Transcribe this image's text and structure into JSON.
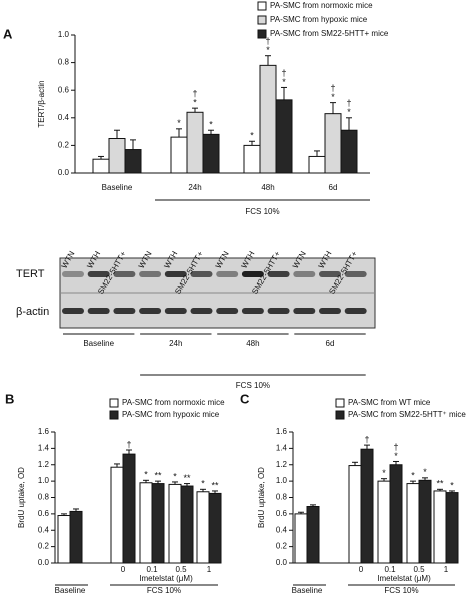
{
  "chart_data": [
    {
      "type": "bar",
      "panel": "A",
      "ylabel": "TERT/β-actin",
      "categories": [
        "Baseline",
        "24h",
        "48h",
        "6d"
      ],
      "group_label": "FCS 10%",
      "ylim": [
        0,
        1.0
      ],
      "yticks": [
        {
          "value": 0,
          "label": "0.0"
        },
        {
          "value": 0.2,
          "label": "0.2"
        },
        {
          "value": 0.4,
          "label": "0.4"
        },
        {
          "value": 0.6,
          "label": "0.6"
        },
        {
          "value": 0.8,
          "label": "0.8"
        },
        {
          "value": 1.0,
          "label": "1.0"
        }
      ],
      "series": [
        {
          "name": "PA-SMC from normoxic mice",
          "color": "#ffffff",
          "values": [
            0.1,
            0.26,
            0.2,
            0.12
          ],
          "errors": [
            0.02,
            0.06,
            0.03,
            0.04
          ],
          "significance": [
            null,
            [
              "*"
            ],
            [
              "*"
            ],
            null
          ]
        },
        {
          "name": "PA-SMC from hypoxic mice",
          "color": "#d9d9d9",
          "values": [
            0.25,
            0.44,
            0.78,
            0.43
          ],
          "errors": [
            0.06,
            0.03,
            0.07,
            0.08
          ],
          "significance": [
            null,
            [
              "†",
              "*"
            ],
            [
              "†",
              "*"
            ],
            [
              "†",
              "*"
            ]
          ]
        },
        {
          "name": "PA-SMC from SM22-5HTT+ mice",
          "color": "#262626",
          "values": [
            0.17,
            0.28,
            0.53,
            0.31
          ],
          "errors": [
            0.07,
            0.03,
            0.09,
            0.09
          ],
          "significance": [
            null,
            [
              "*"
            ],
            [
              "†",
              "*"
            ],
            [
              "†",
              "*"
            ]
          ]
        }
      ]
    },
    {
      "type": "bar",
      "panel": "B",
      "ylabel": "BrdU uptake, OD",
      "categories": [
        "Baseline",
        "0",
        "0.1",
        "0.5",
        "1"
      ],
      "xlabel": "Imetelstat (μM)",
      "group_label": "FCS 10%",
      "ylim": [
        0,
        1.6
      ],
      "yticks": [
        {
          "value": 0,
          "label": "0.0"
        },
        {
          "value": 0.2,
          "label": "0.2"
        },
        {
          "value": 0.4,
          "label": "0.4"
        },
        {
          "value": 0.6,
          "label": "0.6"
        },
        {
          "value": 0.8,
          "label": "0.8"
        },
        {
          "value": 1.0,
          "label": "1.0"
        },
        {
          "value": 1.2,
          "label": "1.2"
        },
        {
          "value": 1.4,
          "label": "1.4"
        },
        {
          "value": 1.6,
          "label": "1.6"
        }
      ],
      "series": [
        {
          "name": "PA-SMC from normoxic mice",
          "color": "#ffffff",
          "values": [
            0.58,
            1.17,
            0.98,
            0.96,
            0.87
          ],
          "errors": [
            0.02,
            0.04,
            0.03,
            0.03,
            0.03
          ],
          "significance": [
            null,
            null,
            [
              "*"
            ],
            [
              "*"
            ],
            [
              "*"
            ]
          ]
        },
        {
          "name": "PA-SMC from hypoxic mice",
          "color": "#262626",
          "values": [
            0.63,
            1.33,
            0.97,
            0.94,
            0.85
          ],
          "errors": [
            0.03,
            0.05,
            0.03,
            0.03,
            0.03
          ],
          "significance": [
            null,
            [
              "†"
            ],
            [
              "**"
            ],
            [
              "**"
            ],
            [
              "**"
            ]
          ]
        }
      ]
    },
    {
      "type": "bar",
      "panel": "C",
      "ylabel": "BrdU uptake, OD",
      "categories": [
        "Baseline",
        "0",
        "0.1",
        "0.5",
        "1"
      ],
      "xlabel": "Imetelstat (μM)",
      "group_label": "FCS 10%",
      "ylim": [
        0,
        1.6
      ],
      "yticks": [
        {
          "value": 0,
          "label": "0.0"
        },
        {
          "value": 0.2,
          "label": "0.2"
        },
        {
          "value": 0.4,
          "label": "0.4"
        },
        {
          "value": 0.6,
          "label": "0.6"
        },
        {
          "value": 0.8,
          "label": "0.8"
        },
        {
          "value": 1.0,
          "label": "1.0"
        },
        {
          "value": 1.2,
          "label": "1.2"
        },
        {
          "value": 1.4,
          "label": "1.4"
        },
        {
          "value": 1.6,
          "label": "1.6"
        }
      ],
      "series": [
        {
          "name": "PA-SMC from WT mice",
          "color": "#ffffff",
          "values": [
            0.6,
            1.19,
            1.0,
            0.97,
            0.88
          ],
          "errors": [
            0.02,
            0.04,
            0.03,
            0.03,
            0.02
          ],
          "significance": [
            null,
            null,
            [
              "*"
            ],
            [
              "*"
            ],
            [
              "**"
            ]
          ]
        },
        {
          "name": "PA-SMC from SM22-5HTT⁺ mice",
          "color": "#262626",
          "values": [
            0.69,
            1.39,
            1.2,
            1.01,
            0.86
          ],
          "errors": [
            0.02,
            0.05,
            0.04,
            0.03,
            0.02
          ],
          "significance": [
            null,
            [
              "†"
            ],
            [
              "†",
              "*"
            ],
            [
              "*"
            ],
            [
              "*"
            ]
          ]
        }
      ]
    }
  ],
  "blot": {
    "rows": [
      "TERT",
      "β-actin"
    ],
    "lanes": [
      "WTN",
      "WTH",
      "SM22-5HTT+",
      "WTN",
      "WTH",
      "SM22-5HTT+",
      "WTN",
      "WTH",
      "SM22-5HTT+",
      "WTN",
      "WTH",
      "SM22-5HTT+"
    ],
    "groups": [
      "Baseline",
      "24h",
      "48h",
      "6d"
    ],
    "treatment": "FCS 10%"
  }
}
